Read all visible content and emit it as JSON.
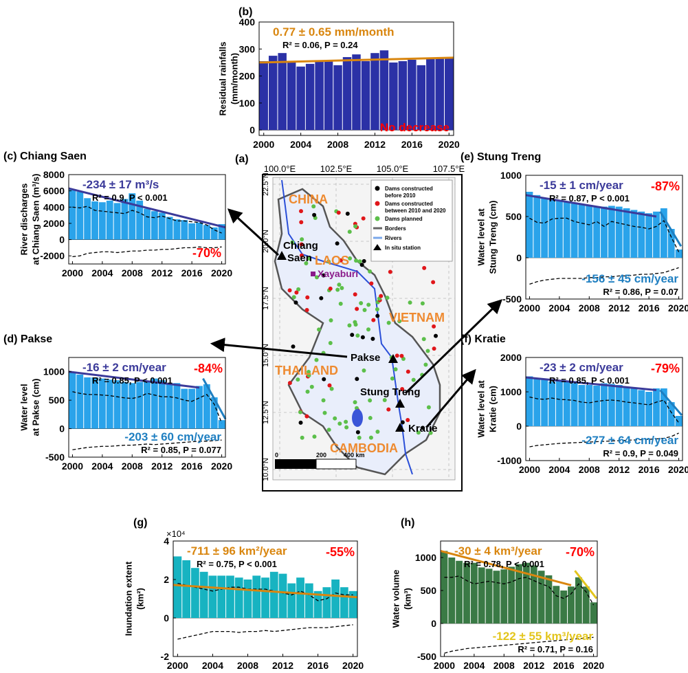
{
  "figure": {
    "colors": {
      "bar_blue": "#2b31a6",
      "bar_sky": "#2aa3ea",
      "bar_teal": "#17b3c1",
      "bar_green": "#3a7a45",
      "trend_orange": "#d9860f",
      "trend_navy": "#3b3a9a",
      "trend_lightblue": "#1f7fc1",
      "trend_yellow": "#e3c51c",
      "red": "#ff0000",
      "map_label": "#ee8a30"
    }
  },
  "chart_data": [
    {
      "id": "b",
      "type": "bar",
      "panel_label": "(b)",
      "ylabel_lines": [
        "Residual rainfalls",
        "(mm/month)"
      ],
      "ylim": [
        -20,
        400
      ],
      "yticks": [
        0,
        100,
        200,
        300,
        400
      ],
      "xticks": [
        "2000",
        "2004",
        "2008",
        "2012",
        "2016",
        "2020"
      ],
      "years": [
        2000,
        2001,
        2002,
        2003,
        2004,
        2005,
        2006,
        2007,
        2008,
        2009,
        2010,
        2011,
        2012,
        2013,
        2014,
        2015,
        2016,
        2017,
        2018,
        2019,
        2020
      ],
      "values": [
        255,
        275,
        285,
        250,
        235,
        245,
        255,
        255,
        240,
        270,
        280,
        255,
        285,
        295,
        250,
        255,
        260,
        240,
        265,
        265,
        270
      ],
      "trend": {
        "start": 250,
        "end": 268
      },
      "annotations": [
        {
          "text": "0.77 ± 0.65 mm/month",
          "color": "#d9860f",
          "pos": "top-left"
        },
        {
          "text": "R² = 0.06, P = 0.24",
          "color": "#000000",
          "pos": "top-left-2"
        },
        {
          "text": "No decrease",
          "color": "#ff0000",
          "pos": "bottom-right"
        }
      ]
    },
    {
      "id": "c",
      "type": "bar",
      "panel_label": "(c) Chiang Saen",
      "ylabel_lines": [
        "River discharges",
        "at Chiang Saen (m³/s)"
      ],
      "ylim": [
        -3000,
        8000
      ],
      "yticks": [
        -2000,
        0,
        2000,
        4000,
        6000,
        8000
      ],
      "xticks": [
        "2000",
        "2004",
        "2008",
        "2012",
        "2016",
        "2020"
      ],
      "years": [
        2000,
        2001,
        2002,
        2003,
        2004,
        2005,
        2006,
        2007,
        2008,
        2009,
        2010,
        2011,
        2012,
        2013,
        2014,
        2015,
        2016,
        2017,
        2018,
        2019,
        2020
      ],
      "values": [
        6200,
        5900,
        5100,
        4700,
        4600,
        4800,
        4500,
        5000,
        5700,
        4800,
        3800,
        3500,
        3300,
        2800,
        2500,
        2400,
        2000,
        2100,
        1800,
        1500,
        1900
      ],
      "trend": {
        "start": 6300,
        "end": 1500
      },
      "residual_upper": [
        4000,
        3900,
        4100,
        3600,
        3500,
        3400,
        3300,
        3200,
        3600,
        3300,
        2800,
        2700,
        2900,
        2600,
        2300,
        2300,
        2200,
        2100,
        1800,
        1200,
        800
      ],
      "residual_lower": [
        -2100,
        -2000,
        -1700,
        -1600,
        -1500,
        -1500,
        -1600,
        -1500,
        -1400,
        -1400,
        -1300,
        -1300,
        -1200,
        -1200,
        -1100,
        -1000,
        -1000,
        -900,
        -1000,
        -1000,
        -900
      ],
      "annotations": [
        {
          "text": "-234 ± 17 m³/s",
          "color": "#3b3a9a",
          "pos": "top-left"
        },
        {
          "text": "R² = 0.9, P < 0.001",
          "color": "#000000",
          "pos": "top-left-2"
        },
        {
          "text": "-70%",
          "color": "#ff0000",
          "pos": "bottom-right"
        }
      ]
    },
    {
      "id": "d",
      "type": "bar",
      "panel_label": "(d) Pakse",
      "ylabel_lines": [
        "Water level",
        "at Pakse (cm)"
      ],
      "ylim": [
        -500,
        1250
      ],
      "yticks": [
        -500,
        0,
        500,
        1000
      ],
      "xticks": [
        "2000",
        "2004",
        "2008",
        "2012",
        "2016",
        "2020"
      ],
      "years": [
        2000,
        2001,
        2002,
        2003,
        2004,
        2005,
        2006,
        2007,
        2008,
        2009,
        2010,
        2011,
        2012,
        2013,
        2014,
        2015,
        2016,
        2017,
        2018,
        2019,
        2020
      ],
      "values": [
        1000,
        950,
        900,
        900,
        880,
        860,
        850,
        820,
        800,
        820,
        830,
        880,
        850,
        800,
        800,
        700,
        700,
        750,
        780,
        550,
        150
      ],
      "trend": {
        "start": 1000,
        "end": 720
      },
      "trend2": {
        "start": 2017.5,
        "end": 2020.5,
        "y1": 880,
        "y2": 170
      },
      "residual_upper": [
        650,
        620,
        600,
        600,
        590,
        580,
        560,
        540,
        530,
        560,
        620,
        590,
        560,
        560,
        540,
        500,
        480,
        540,
        600,
        430,
        100
      ],
      "residual_lower": [
        -370,
        -350,
        -330,
        -320,
        -310,
        -310,
        -300,
        -290,
        -290,
        -280,
        -270,
        -280,
        -270,
        -260,
        -250,
        -240,
        -230,
        -220,
        -220,
        -210,
        -200
      ],
      "annotations": [
        {
          "text": "-16 ± 2 cm/year",
          "color": "#3b3a9a",
          "pos": "top-left"
        },
        {
          "text": "R² = 0.85, P < 0.001",
          "color": "#000000",
          "pos": "top-left-2"
        },
        {
          "text": "-84%",
          "color": "#ff0000",
          "pos": "top-right"
        },
        {
          "text": "-203 ± 60 cm/year",
          "color": "#1f7fc1",
          "pos": "bottom-right-1"
        },
        {
          "text": "R² = 0.85, P = 0.077",
          "color": "#000000",
          "pos": "bottom-right-2"
        }
      ]
    },
    {
      "id": "e",
      "type": "bar",
      "panel_label": "(e) Stung Treng",
      "ylabel_lines": [
        "Water level at",
        "Stung Treng (cm)"
      ],
      "ylim": [
        -500,
        1000
      ],
      "yticks": [
        -500,
        0,
        500,
        1000
      ],
      "xticks": [
        "2000",
        "2004",
        "2008",
        "2012",
        "2016",
        "2020"
      ],
      "years": [
        2000,
        2001,
        2002,
        2003,
        2004,
        2005,
        2006,
        2007,
        2008,
        2009,
        2010,
        2011,
        2012,
        2013,
        2014,
        2015,
        2016,
        2017,
        2018,
        2019,
        2020
      ],
      "values": [
        800,
        760,
        720,
        700,
        690,
        680,
        660,
        650,
        640,
        620,
        620,
        630,
        620,
        600,
        580,
        560,
        540,
        560,
        600,
        350,
        100
      ],
      "trend": {
        "start": 760,
        "end": 500
      },
      "trend2": {
        "start": 2017.5,
        "end": 2020.3,
        "y1": 560,
        "y2": 140
      },
      "residual_upper": [
        480,
        430,
        420,
        470,
        480,
        480,
        440,
        420,
        400,
        440,
        380,
        440,
        420,
        400,
        380,
        370,
        350,
        380,
        450,
        250,
        70
      ],
      "residual_lower": [
        -320,
        -290,
        -270,
        -260,
        -250,
        -250,
        -250,
        -250,
        -240,
        -240,
        -230,
        -230,
        -220,
        -220,
        -210,
        -200,
        -200,
        -190,
        -180,
        -150,
        -120
      ],
      "annotations": [
        {
          "text": "-15 ± 1 cm/year",
          "color": "#3b3a9a",
          "pos": "top-left"
        },
        {
          "text": "R² = 0.87, P < 0.001",
          "color": "#000000",
          "pos": "top-left-2"
        },
        {
          "text": "-87%",
          "color": "#ff0000",
          "pos": "top-right"
        },
        {
          "text": "-156 ± 45 cm/year",
          "color": "#1f7fc1",
          "pos": "bottom-right-1"
        },
        {
          "text": "R² = 0.86, P = 0.07",
          "color": "#000000",
          "pos": "bottom-right-2"
        }
      ]
    },
    {
      "id": "f",
      "type": "bar",
      "panel_label": "(f) Kratie",
      "ylabel_lines": [
        "Water level at",
        "Kratie (cm)"
      ],
      "ylim": [
        -1000,
        2000
      ],
      "yticks": [
        -1000,
        0,
        1000,
        2000
      ],
      "xticks": [
        "2000",
        "2004",
        "2008",
        "2012",
        "2016",
        "2020"
      ],
      "years": [
        2000,
        2001,
        2002,
        2003,
        2004,
        2005,
        2006,
        2007,
        2008,
        2009,
        2010,
        2011,
        2012,
        2013,
        2014,
        2015,
        2016,
        2017,
        2018,
        2019,
        2020
      ],
      "values": [
        1450,
        1400,
        1350,
        1300,
        1320,
        1300,
        1250,
        1200,
        1200,
        1180,
        1250,
        1230,
        1200,
        1150,
        1100,
        1050,
        1000,
        1100,
        1100,
        700,
        300
      ],
      "trend": {
        "start": 1420,
        "end": 1050
      },
      "trend2": {
        "start": 2017.5,
        "end": 2020.4,
        "y1": 1050,
        "y2": 320
      },
      "residual_upper": [
        850,
        800,
        780,
        820,
        780,
        770,
        750,
        700,
        680,
        720,
        750,
        760,
        740,
        700,
        680,
        650,
        620,
        700,
        760,
        400,
        100
      ],
      "residual_lower": [
        -600,
        -560,
        -540,
        -520,
        -500,
        -490,
        -480,
        -470,
        -460,
        -450,
        -440,
        -430,
        -420,
        -410,
        -400,
        -390,
        -380,
        -370,
        -350,
        -300,
        -200
      ],
      "annotations": [
        {
          "text": "-23 ± 2 cm/year",
          "color": "#3b3a9a",
          "pos": "top-left"
        },
        {
          "text": "R² = 0.85, P < 0.001",
          "color": "#000000",
          "pos": "top-left-2"
        },
        {
          "text": "-79%",
          "color": "#ff0000",
          "pos": "top-right"
        },
        {
          "text": "-277 ± 64 cm/year",
          "color": "#1f7fc1",
          "pos": "bottom-right-1"
        },
        {
          "text": "R² = 0.9, P = 0.049",
          "color": "#000000",
          "pos": "bottom-right-2"
        }
      ]
    },
    {
      "id": "g",
      "type": "bar",
      "panel_label": "(g)",
      "ylabel_lines": [
        "Inundation extent",
        "(km²)"
      ],
      "exponent_label": "×10⁴",
      "ylim": [
        -2,
        4
      ],
      "yticks": [
        -2,
        0,
        2,
        4
      ],
      "xticks": [
        "2000",
        "2004",
        "2008",
        "2012",
        "2016",
        "2020"
      ],
      "years": [
        2000,
        2001,
        2002,
        2003,
        2004,
        2005,
        2006,
        2007,
        2008,
        2009,
        2010,
        2011,
        2012,
        2013,
        2014,
        2015,
        2016,
        2017,
        2018,
        2019,
        2020
      ],
      "values": [
        3.2,
        3.0,
        2.6,
        2.4,
        2.2,
        2.2,
        2.2,
        2.1,
        2.0,
        2.2,
        2.1,
        2.4,
        2.3,
        1.8,
        2.1,
        1.8,
        1.4,
        1.6,
        2.0,
        1.6,
        1.4
      ],
      "trend": {
        "start": 1.72,
        "end": 1.08
      },
      "residual_upper": [
        1.8,
        1.7,
        1.6,
        1.5,
        1.4,
        1.5,
        1.6,
        1.6,
        1.5,
        1.5,
        1.5,
        1.4,
        1.3,
        1.2,
        1.4,
        1.2,
        0.9,
        1.0,
        1.3,
        1.2,
        1.2
      ],
      "residual_lower": [
        -1.1,
        -1.0,
        -0.9,
        -0.8,
        -0.7,
        -0.7,
        -0.7,
        -0.75,
        -0.7,
        -0.7,
        -0.65,
        -0.7,
        -0.65,
        -0.6,
        -0.55,
        -0.5,
        -0.5,
        -0.5,
        -0.45,
        -0.4,
        -0.35
      ],
      "annotations": [
        {
          "text": "-711 ± 96 km²/year",
          "color": "#d9860f",
          "pos": "top-left"
        },
        {
          "text": "R² = 0.75, P < 0.001",
          "color": "#000000",
          "pos": "top-left-2"
        },
        {
          "text": "-55%",
          "color": "#ff0000",
          "pos": "top-right"
        }
      ]
    },
    {
      "id": "h",
      "type": "bar",
      "panel_label": "(h)",
      "ylabel_lines": [
        "Water volume",
        "(km³)"
      ],
      "ylim": [
        -500,
        1250
      ],
      "yticks": [
        -500,
        0,
        500,
        1000
      ],
      "xticks": [
        "2000",
        "2004",
        "2008",
        "2012",
        "2016",
        "2020"
      ],
      "years": [
        2000,
        2001,
        2002,
        2003,
        2004,
        2005,
        2006,
        2007,
        2008,
        2009,
        2010,
        2011,
        2012,
        2013,
        2014,
        2015,
        2016,
        2017,
        2018,
        2019,
        2020
      ],
      "values": [
        1100,
        1000,
        950,
        920,
        920,
        850,
        830,
        800,
        820,
        860,
        900,
        920,
        880,
        800,
        730,
        570,
        500,
        560,
        700,
        560,
        320
      ],
      "trend": {
        "start": 1100,
        "end": 580
      },
      "trend2": {
        "start": 2017.5,
        "end": 2020.4,
        "y1": 800,
        "y2": 380
      },
      "residual_upper": [
        700,
        700,
        720,
        650,
        600,
        620,
        640,
        620,
        600,
        630,
        680,
        700,
        650,
        600,
        560,
        420,
        380,
        450,
        600,
        480,
        280
      ],
      "residual_lower": [
        -450,
        -420,
        -400,
        -380,
        -370,
        -360,
        -350,
        -340,
        -330,
        -320,
        -310,
        -300,
        -290,
        -280,
        -270,
        -260,
        -250,
        -240,
        -230,
        -220,
        -210
      ],
      "annotations": [
        {
          "text": "-30 ± 4 km³/year",
          "color": "#d9860f",
          "pos": "top-left"
        },
        {
          "text": "R² = 0.78, P < 0.001",
          "color": "#000000",
          "pos": "top-left-2"
        },
        {
          "text": "-70%",
          "color": "#ff0000",
          "pos": "top-right"
        },
        {
          "text": "-122 ± 55 km³/year",
          "color": "#e3c51c",
          "pos": "bottom-right-1"
        },
        {
          "text": "R² = 0.71, P = 0.16",
          "color": "#000000",
          "pos": "bottom-right-2"
        }
      ]
    }
  ],
  "map": {
    "panel_label": "(a)",
    "lon_ticks": [
      "100.0°E",
      "102.5°E",
      "105.0°E",
      "107.5°E"
    ],
    "lat_ticks": [
      "22.5°N",
      "20.0°N",
      "17.5°N",
      "15.0°N",
      "12.5°N",
      "10.0°N"
    ],
    "countries": [
      "CHINA",
      "LAOS",
      "VIETNAM",
      "THAILAND",
      "CAMBODIA"
    ],
    "stations": [
      "Chiang Saen",
      "Pakse",
      "Stung Treng",
      "Kratie"
    ],
    "dam_label": "Xayaburi",
    "legend": [
      {
        "label": "Dams constructed before 2010",
        "color": "#000000",
        "type": "dot"
      },
      {
        "label": "Dams constructed between 2010 and 2020",
        "color": "#e0161a",
        "type": "dot"
      },
      {
        "label": "Dams planned",
        "color": "#5cbf4a",
        "type": "dot"
      },
      {
        "label": "Borders",
        "color": "#666666",
        "type": "line"
      },
      {
        "label": "Rivers",
        "color": "#7aa7ea",
        "type": "line"
      },
      {
        "label": "In situ station",
        "color": "#000000",
        "type": "triangle"
      }
    ],
    "scale_labels": [
      "0",
      "200",
      "400 km"
    ]
  }
}
